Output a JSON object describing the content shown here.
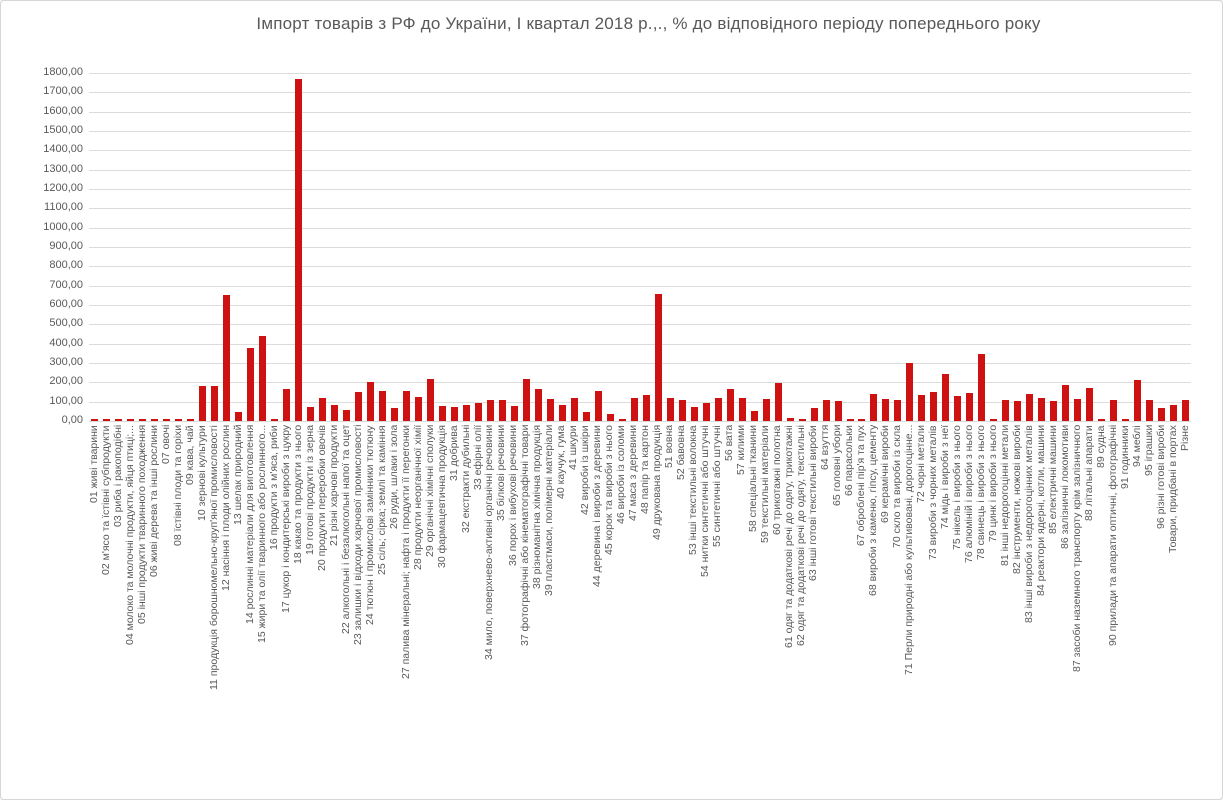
{
  "title": "Імпорт товарів з РФ до України, І квартал 2018 р.,., % до відповідного періоду попереднього року",
  "colors": {
    "bar": "#ce1111",
    "grid": "#dcdcdc",
    "text": "#595959",
    "background": "#ffffff"
  },
  "chart_data": {
    "type": "bar",
    "title": "Імпорт товарів з РФ до України, І квартал 2018 р.,., % до відповідного періоду попереднього року",
    "xlabel": "",
    "ylabel": "",
    "ylim": [
      0,
      1800
    ],
    "ytick_step": 100,
    "grid": true,
    "legend": "none",
    "bar_color": "#ce1111",
    "ytick_labels": [
      "1800,00",
      "1700,00",
      "1600,00",
      "1500,00",
      "1400,00",
      "1300,00",
      "1200,00",
      "1100,00",
      "1000,00",
      "900,00",
      "800,00",
      "700,00",
      "600,00",
      "500,00",
      "400,00",
      "300,00",
      "200,00",
      "100,00",
      "0,00"
    ],
    "categories": [
      "01 живі тварини",
      "02 м'ясо та їстівні субпродукти",
      "03 риба і ракоподібні",
      "04 молоко та молочні продукти, яйця птиці;...",
      "05 інші продукти тваринного походження",
      "06 живі дерева та інші рослини",
      "07 овочі",
      "08 їстівні плоди та горіхи",
      "09 кава, чай",
      "10 зернові культури",
      "11 продукція борошномельно-круп'яної промисловості",
      "12 насіння і плоди олійних рослин",
      "13 шелак природний",
      "14 рослинні матеріали для виготовлення",
      "15 жири та олії тваринного або рослинного...",
      "16 продукти з м'яса, риби",
      "17 цукор і кондитерські вироби з цукру",
      "18 какао та продукти з нього",
      "19 готові продукти із зерна",
      "20 продукти переробки овочів",
      "21 різні харчові продукти",
      "22 алкогольні і безалкогольні напої та оцет",
      "23 залишки і відходи харчової промисловості",
      "24 тютюн і промислові замінники тютюну",
      "25 сіль; сірка; землі та каміння",
      "26 руди, шлаки і зола",
      "27 палива мінеральні; нафта і продукти її перегонки",
      "28 продукти неорганічної хімії",
      "29 органічні хімічні сполуки",
      "30 фармацевтична продукція",
      "31 добрива",
      "32 екстракти дубильні",
      "33 ефірні олії",
      "34 мило, поверхнево-активні органічні речовини",
      "35 білкові речовини",
      "36 порох і вибухові речовини",
      "37 фотографічні або кінематографічні товари",
      "38 різноманітна хімічна продукція",
      "39 пластмаси, полімерні матеріали",
      "40 каучук, гума",
      "41 шкури",
      "42 вироби із шкіри",
      "44 деревина і вироби з деревини",
      "45 корок та вироби з нього",
      "46 вироби із соломи",
      "47 маса з деревини",
      "48 папір та картон",
      "49 друкована продукція",
      "51 вовна",
      "52 бавовна",
      "53 інші текстильні волокна",
      "54 нитки синтетичні або штучні",
      "55 синтетичні або штучні",
      "56 вата",
      "57 килими",
      "58 спеціальні тканини",
      "59 текстильні матеріали",
      "60 трикотажні полотна",
      "61 одяг та додаткові речі до одягу, трикотажні",
      "62 одяг та додаткові речі до одягу, текстильні",
      "63 інші готові текстильні вироби",
      "64 взуття",
      "65 головні убори",
      "66 парасольки",
      "67 оброблені пір'я та пух",
      "68 вироби з каменю, гіпсу, цементу",
      "69 керамічні вироби",
      "70 скло та вироби із скла",
      "71 Перли природні або культивовані, дорогоцінне...",
      "72 чорні метали",
      "73 вироби з чорних металів",
      "74 мідь і вироби з неї",
      "75 нікель і вироби з нього",
      "76 алюміній і вироби з нього",
      "78 свинець і вироби з нього",
      "79 цинк і вироби з нього",
      "81 інші недорогоцінні метали",
      "82 інструменти, ножові вироби",
      "83 інші вироби з недорогоцінних металів",
      "84 реактори ядерні, котли, машини",
      "85 електричні машини",
      "86 залізничні локомотиви",
      "87 засоби наземного транспорту крім залізничного",
      "88 літальні апарати",
      "89 судна",
      "90 прилади та апарати оптичні, фотографічні",
      "91 годинники",
      "94 меблі",
      "95 іграшки",
      "96 різні готові вироби",
      "Товари, придбані в портах",
      "Різне"
    ],
    "values": [
      5,
      5,
      5,
      5,
      8,
      5,
      5,
      10,
      8,
      180,
      180,
      650,
      45,
      380,
      440,
      5,
      165,
      1770,
      70,
      120,
      82,
      56,
      152,
      200,
      157,
      69,
      155,
      124,
      215,
      77,
      72,
      83,
      95,
      107,
      107,
      78,
      219,
      167,
      112,
      81,
      117,
      45,
      155,
      34,
      8,
      120,
      134,
      655,
      117,
      107,
      72,
      91,
      120,
      164,
      117,
      52,
      112,
      198,
      17,
      12,
      66,
      107,
      103,
      5,
      5,
      141,
      115,
      109,
      298,
      134,
      148,
      241,
      128,
      145,
      348,
      5,
      109,
      103,
      138,
      117,
      103,
      185,
      112,
      169,
      5,
      107,
      8,
      212,
      109,
      66,
      83,
      107
    ]
  }
}
